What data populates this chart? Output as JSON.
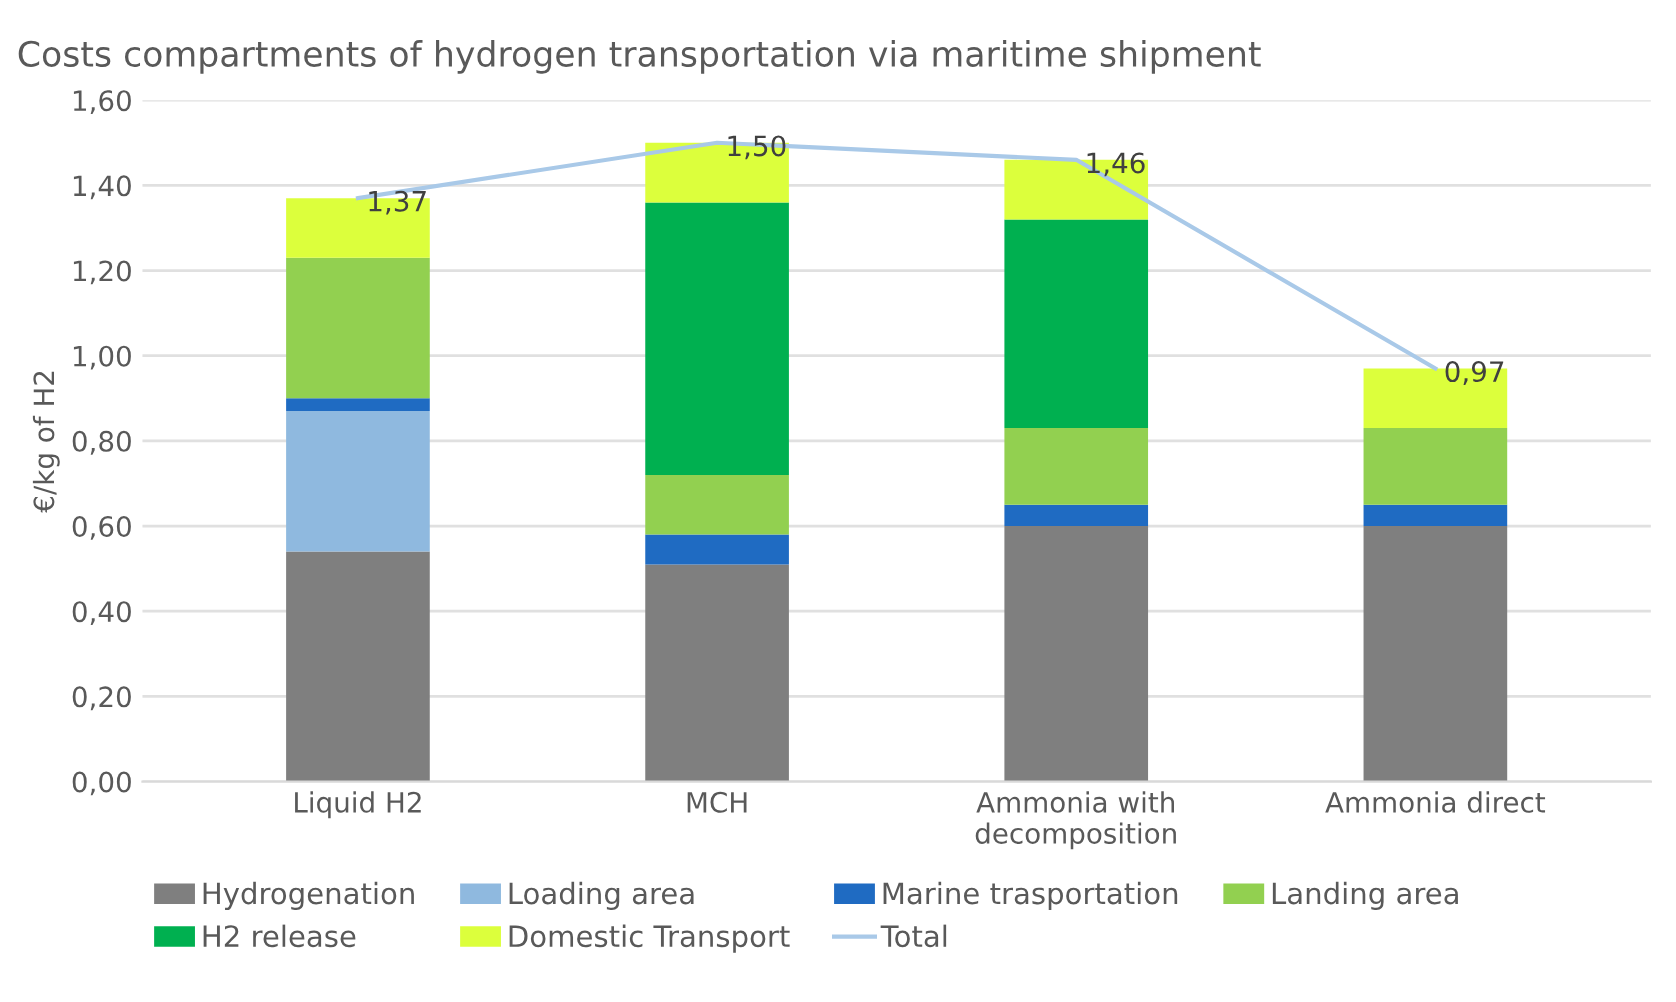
{
  "chart_data": {
    "type": "bar",
    "stacked": true,
    "title": "Costs compartments of hydrogen transportation via maritime shipment",
    "ylabel": "€/kg of H2",
    "categories": [
      "Liquid H2",
      "MCH",
      "Ammonia with\ndecomposition",
      "Ammonia direct"
    ],
    "series": [
      {
        "name": "Hydrogenation",
        "color": "#7f7f7f",
        "values": [
          0.54,
          0.51,
          0.6,
          0.6
        ]
      },
      {
        "name": "Loading area",
        "color": "#8fb9df",
        "values": [
          0.33,
          0,
          0,
          0
        ]
      },
      {
        "name": "Marine trasportation",
        "color": "#1f6bc2",
        "values": [
          0.03,
          0.07,
          0.05,
          0.05
        ]
      },
      {
        "name": "Landing area",
        "color": "#92d050",
        "values": [
          0.33,
          0.14,
          0.18,
          0.18
        ]
      },
      {
        "name": "H2 release",
        "color": "#00b050",
        "values": [
          0,
          0.64,
          0.49,
          0
        ]
      },
      {
        "name": "Domestic Transport",
        "color": "#dcff3c",
        "values": [
          0.14,
          0.14,
          0.14,
          0.14
        ]
      },
      {
        "name": "Total",
        "type": "line",
        "color": "#a9c9e8",
        "values": [
          1.37,
          1.5,
          1.46,
          0.97
        ],
        "value_labels": [
          "1,37",
          "1,50",
          "1,46",
          "0,97"
        ]
      }
    ],
    "ylim": [
      0,
      1.6
    ],
    "yticks": [
      {
        "value": 0,
        "label": "0,00"
      },
      {
        "value": 0.2,
        "label": "0,20"
      },
      {
        "value": 0.4,
        "label": "0,40"
      },
      {
        "value": 0.6,
        "label": "0,60"
      },
      {
        "value": 0.8,
        "label": "0,80"
      },
      {
        "value": 1.0,
        "label": "1,00"
      },
      {
        "value": 1.2,
        "label": "1,20"
      },
      {
        "value": 1.4,
        "label": "1,40"
      },
      {
        "value": 1.6,
        "label": "1,60"
      }
    ],
    "grid": "y",
    "legend": "bottom",
    "marker": "none"
  }
}
